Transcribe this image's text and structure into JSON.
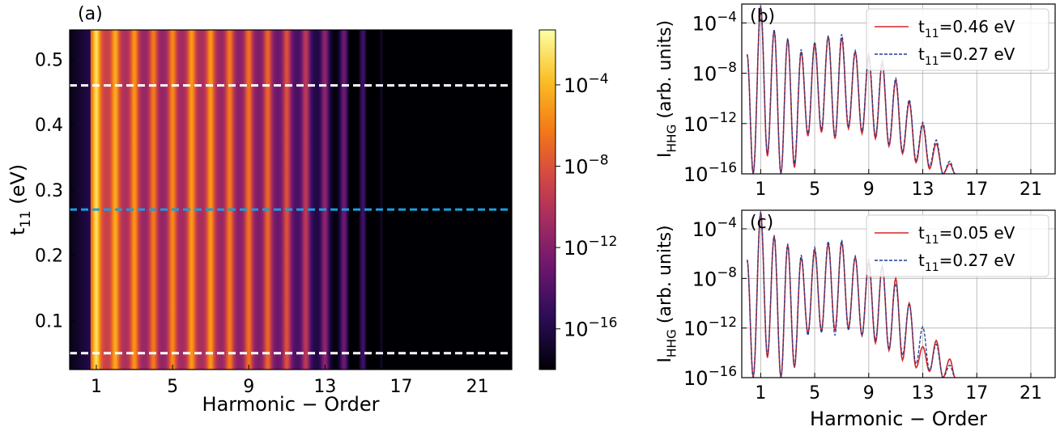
{
  "chart_data": [
    {
      "id": "a",
      "type": "heatmap",
      "panel_label": "(a)",
      "xlabel": "Harmonic − Order",
      "ylabel": "t",
      "ylabel_sub": "11",
      "ylabel_unit": " (eV)",
      "xlim": [
        -0.4,
        22.8
      ],
      "ylim": [
        0.025,
        0.545
      ],
      "xticks": [
        1,
        5,
        9,
        13,
        17,
        21
      ],
      "xtick_labels": [
        "1",
        "5",
        "9",
        "13",
        "17",
        "21"
      ],
      "yticks": [
        0.1,
        0.2,
        0.3,
        0.4,
        0.5
      ],
      "ytick_labels": [
        "0.1",
        "0.2",
        "0.3",
        "0.4",
        "0.5"
      ],
      "harmonic_peak_log10_intensity": [
        {
          "order": 1,
          "log10_I": -2.6
        },
        {
          "order": 2,
          "log10_I": -4.5
        },
        {
          "order": 3,
          "log10_I": -5.2
        },
        {
          "order": 4,
          "log10_I": -6.2
        },
        {
          "order": 5,
          "log10_I": -5.6
        },
        {
          "order": 6,
          "log10_I": -5.0
        },
        {
          "order": 7,
          "log10_I": -5.1
        },
        {
          "order": 8,
          "log10_I": -6.2
        },
        {
          "order": 9,
          "log10_I": -6.5
        },
        {
          "order": 10,
          "log10_I": -7.0
        },
        {
          "order": 11,
          "log10_I": -8.0
        },
        {
          "order": 12,
          "log10_I": -9.6
        },
        {
          "order": 13,
          "log10_I": -11.5
        },
        {
          "order": 14,
          "log10_I": -12.8
        },
        {
          "order": 15,
          "log10_I": -14.5
        },
        {
          "order": 16,
          "log10_I": -16.6
        }
      ],
      "hlines": [
        {
          "y": 0.46,
          "color": "#ffffff"
        },
        {
          "y": 0.27,
          "color": "#1a9fdd"
        },
        {
          "y": 0.05,
          "color": "#ffffff"
        }
      ],
      "colorbar": {
        "ticks": [
          -4,
          -8,
          -12,
          -16
        ],
        "tick_labels": [
          "10",
          "10",
          "10",
          "10"
        ],
        "tick_exponents": [
          "−4",
          "−8",
          "−12",
          "−16"
        ],
        "range": [
          -18,
          -1.3
        ],
        "colormap": "inferno"
      }
    },
    {
      "id": "b",
      "type": "line",
      "panel_label": "(b)",
      "xlabel": "",
      "ylabel": "I",
      "ylabel_sub": "HHG",
      "ylabel_unit": " (arb. units)",
      "yscale": "log",
      "xlim": [
        -0.4,
        22.8
      ],
      "ylim_log10": [
        -16,
        -2.5
      ],
      "xticks": [
        1,
        5,
        9,
        13,
        17,
        21
      ],
      "xtick_labels": [
        "1",
        "5",
        "9",
        "13",
        "17",
        "21"
      ],
      "yticks_log10": [
        -4,
        -8,
        -12,
        -16
      ],
      "ytick_labels": [
        "10",
        "10",
        "10",
        "10"
      ],
      "ytick_exponents": [
        "−4",
        "−8",
        "−12",
        "−16"
      ],
      "grid": true,
      "legend_position": "top-right",
      "series": [
        {
          "name": "t",
          "name_sub": "11",
          "name_rest": "=0.46 eV",
          "color": "#d62728",
          "dash": "solid",
          "peaks_log10": [
            [
              1,
              -2.7
            ],
            [
              2,
              -4.6
            ],
            [
              3,
              -5.3
            ],
            [
              4,
              -6.3
            ],
            [
              5,
              -5.7
            ],
            [
              6,
              -5.1
            ],
            [
              7,
              -5.2
            ],
            [
              8,
              -6.3
            ],
            [
              9,
              -6.7
            ],
            [
              10,
              -7.2
            ],
            [
              11,
              -8.6
            ],
            [
              12,
              -10.3
            ],
            [
              13,
              -12.1
            ],
            [
              14,
              -13.6
            ],
            [
              15,
              -15.2
            ]
          ],
          "troughs_log10": [
            [
              0.45,
              -16
            ],
            [
              1.5,
              -14.6
            ],
            [
              2.5,
              -16
            ],
            [
              3.5,
              -15.5
            ],
            [
              4.5,
              -13
            ],
            [
              5.5,
              -12.7
            ],
            [
              6.5,
              -13.2
            ],
            [
              7.5,
              -12.4
            ],
            [
              8.5,
              -12.8
            ],
            [
              9.5,
              -13.2
            ],
            [
              10.5,
              -13.8
            ],
            [
              11.5,
              -14.4
            ],
            [
              12.5,
              -15.1
            ],
            [
              13.5,
              -15.6
            ],
            [
              14.5,
              -16
            ],
            [
              15.4,
              -16
            ]
          ]
        },
        {
          "name": "t",
          "name_sub": "11",
          "name_rest": "=0.27 eV",
          "color": "#1f3f8f",
          "dash": "dashed",
          "peaks_log10": [
            [
              1,
              -2.6
            ],
            [
              2,
              -4.5
            ],
            [
              3,
              -5.2
            ],
            [
              4,
              -6.1
            ],
            [
              5,
              -5.5
            ],
            [
              6,
              -5.0
            ],
            [
              7,
              -4.9
            ],
            [
              8,
              -6.2
            ],
            [
              9,
              -6.5
            ],
            [
              10,
              -7.0
            ],
            [
              11,
              -8.4
            ],
            [
              12,
              -10.1
            ],
            [
              13,
              -11.9
            ],
            [
              14,
              -13.3
            ],
            [
              15,
              -15.0
            ]
          ],
          "troughs_log10": [
            [
              0.45,
              -16
            ],
            [
              1.5,
              -14.4
            ],
            [
              2.5,
              -16
            ],
            [
              3.5,
              -15.2
            ],
            [
              4.5,
              -12.8
            ],
            [
              5.5,
              -12.5
            ],
            [
              6.5,
              -13.0
            ],
            [
              7.5,
              -12.2
            ],
            [
              8.5,
              -12.6
            ],
            [
              9.5,
              -13.0
            ],
            [
              10.5,
              -13.6
            ],
            [
              11.5,
              -14.2
            ],
            [
              12.5,
              -14.9
            ],
            [
              13.5,
              -15.4
            ],
            [
              14.5,
              -16
            ],
            [
              15.4,
              -16
            ]
          ]
        }
      ]
    },
    {
      "id": "c",
      "type": "line",
      "panel_label": "(c)",
      "xlabel": "Harmonic − Order",
      "ylabel": "I",
      "ylabel_sub": "HHG",
      "ylabel_unit": " (arb. units)",
      "yscale": "log",
      "xlim": [
        -0.4,
        22.8
      ],
      "ylim_log10": [
        -16,
        -2.5
      ],
      "xticks": [
        1,
        5,
        9,
        13,
        17,
        21
      ],
      "xtick_labels": [
        "1",
        "5",
        "9",
        "13",
        "17",
        "21"
      ],
      "yticks_log10": [
        -4,
        -8,
        -12,
        -16
      ],
      "ytick_labels": [
        "10",
        "10",
        "10",
        "10"
      ],
      "ytick_exponents": [
        "−4",
        "−8",
        "−12",
        "−16"
      ],
      "grid": true,
      "legend_position": "top-right",
      "series": [
        {
          "name": "t",
          "name_sub": "11",
          "name_rest": "=0.05 eV",
          "color": "#d62728",
          "dash": "solid",
          "peaks_log10": [
            [
              1,
              -2.7
            ],
            [
              2,
              -4.6
            ],
            [
              3,
              -5.3
            ],
            [
              4,
              -6.3
            ],
            [
              5,
              -5.7
            ],
            [
              6,
              -5.2
            ],
            [
              7,
              -5.1
            ],
            [
              8,
              -6.3
            ],
            [
              9,
              -6.7
            ],
            [
              10,
              -7.0
            ],
            [
              11,
              -8.0
            ],
            [
              12,
              -10.0
            ],
            [
              13,
              -13.5
            ],
            [
              14,
              -13.0
            ],
            [
              15,
              -14.5
            ]
          ],
          "troughs_log10": [
            [
              0.45,
              -16
            ],
            [
              1.5,
              -14.4
            ],
            [
              2.5,
              -16
            ],
            [
              3.5,
              -15.2
            ],
            [
              4.5,
              -12.4
            ],
            [
              5.5,
              -12.2
            ],
            [
              6.5,
              -12.2
            ],
            [
              7.5,
              -12.0
            ],
            [
              8.5,
              -12.6
            ],
            [
              9.5,
              -13.2
            ],
            [
              10.5,
              -13.8
            ],
            [
              11.5,
              -14.6
            ],
            [
              12.5,
              -15.2
            ],
            [
              13.5,
              -15.5
            ],
            [
              14.5,
              -16
            ],
            [
              15.4,
              -16
            ]
          ]
        },
        {
          "name": "t",
          "name_sub": "11",
          "name_rest": "=0.27 eV",
          "color": "#1f3f8f",
          "dash": "dashed",
          "peaks_log10": [
            [
              1,
              -2.6
            ],
            [
              2,
              -4.5
            ],
            [
              3,
              -5.2
            ],
            [
              4,
              -6.1
            ],
            [
              5,
              -5.5
            ],
            [
              6,
              -5.0
            ],
            [
              7,
              -4.9
            ],
            [
              8,
              -6.2
            ],
            [
              9,
              -6.5
            ],
            [
              10,
              -7.0
            ],
            [
              11,
              -8.4
            ],
            [
              12,
              -10.1
            ],
            [
              13,
              -11.9
            ],
            [
              14,
              -13.3
            ],
            [
              15,
              -15.0
            ]
          ],
          "troughs_log10": [
            [
              0.45,
              -16
            ],
            [
              1.5,
              -14.2
            ],
            [
              2.5,
              -16
            ],
            [
              3.5,
              -15.0
            ],
            [
              4.5,
              -12.6
            ],
            [
              5.5,
              -12.4
            ],
            [
              6.5,
              -12.6
            ],
            [
              7.5,
              -12.2
            ],
            [
              8.5,
              -12.6
            ],
            [
              9.5,
              -13.0
            ],
            [
              10.5,
              -13.6
            ],
            [
              11.5,
              -14.2
            ],
            [
              12.5,
              -14.9
            ],
            [
              13.5,
              -15.4
            ],
            [
              14.5,
              -16
            ],
            [
              15.4,
              -16
            ]
          ]
        }
      ]
    }
  ]
}
